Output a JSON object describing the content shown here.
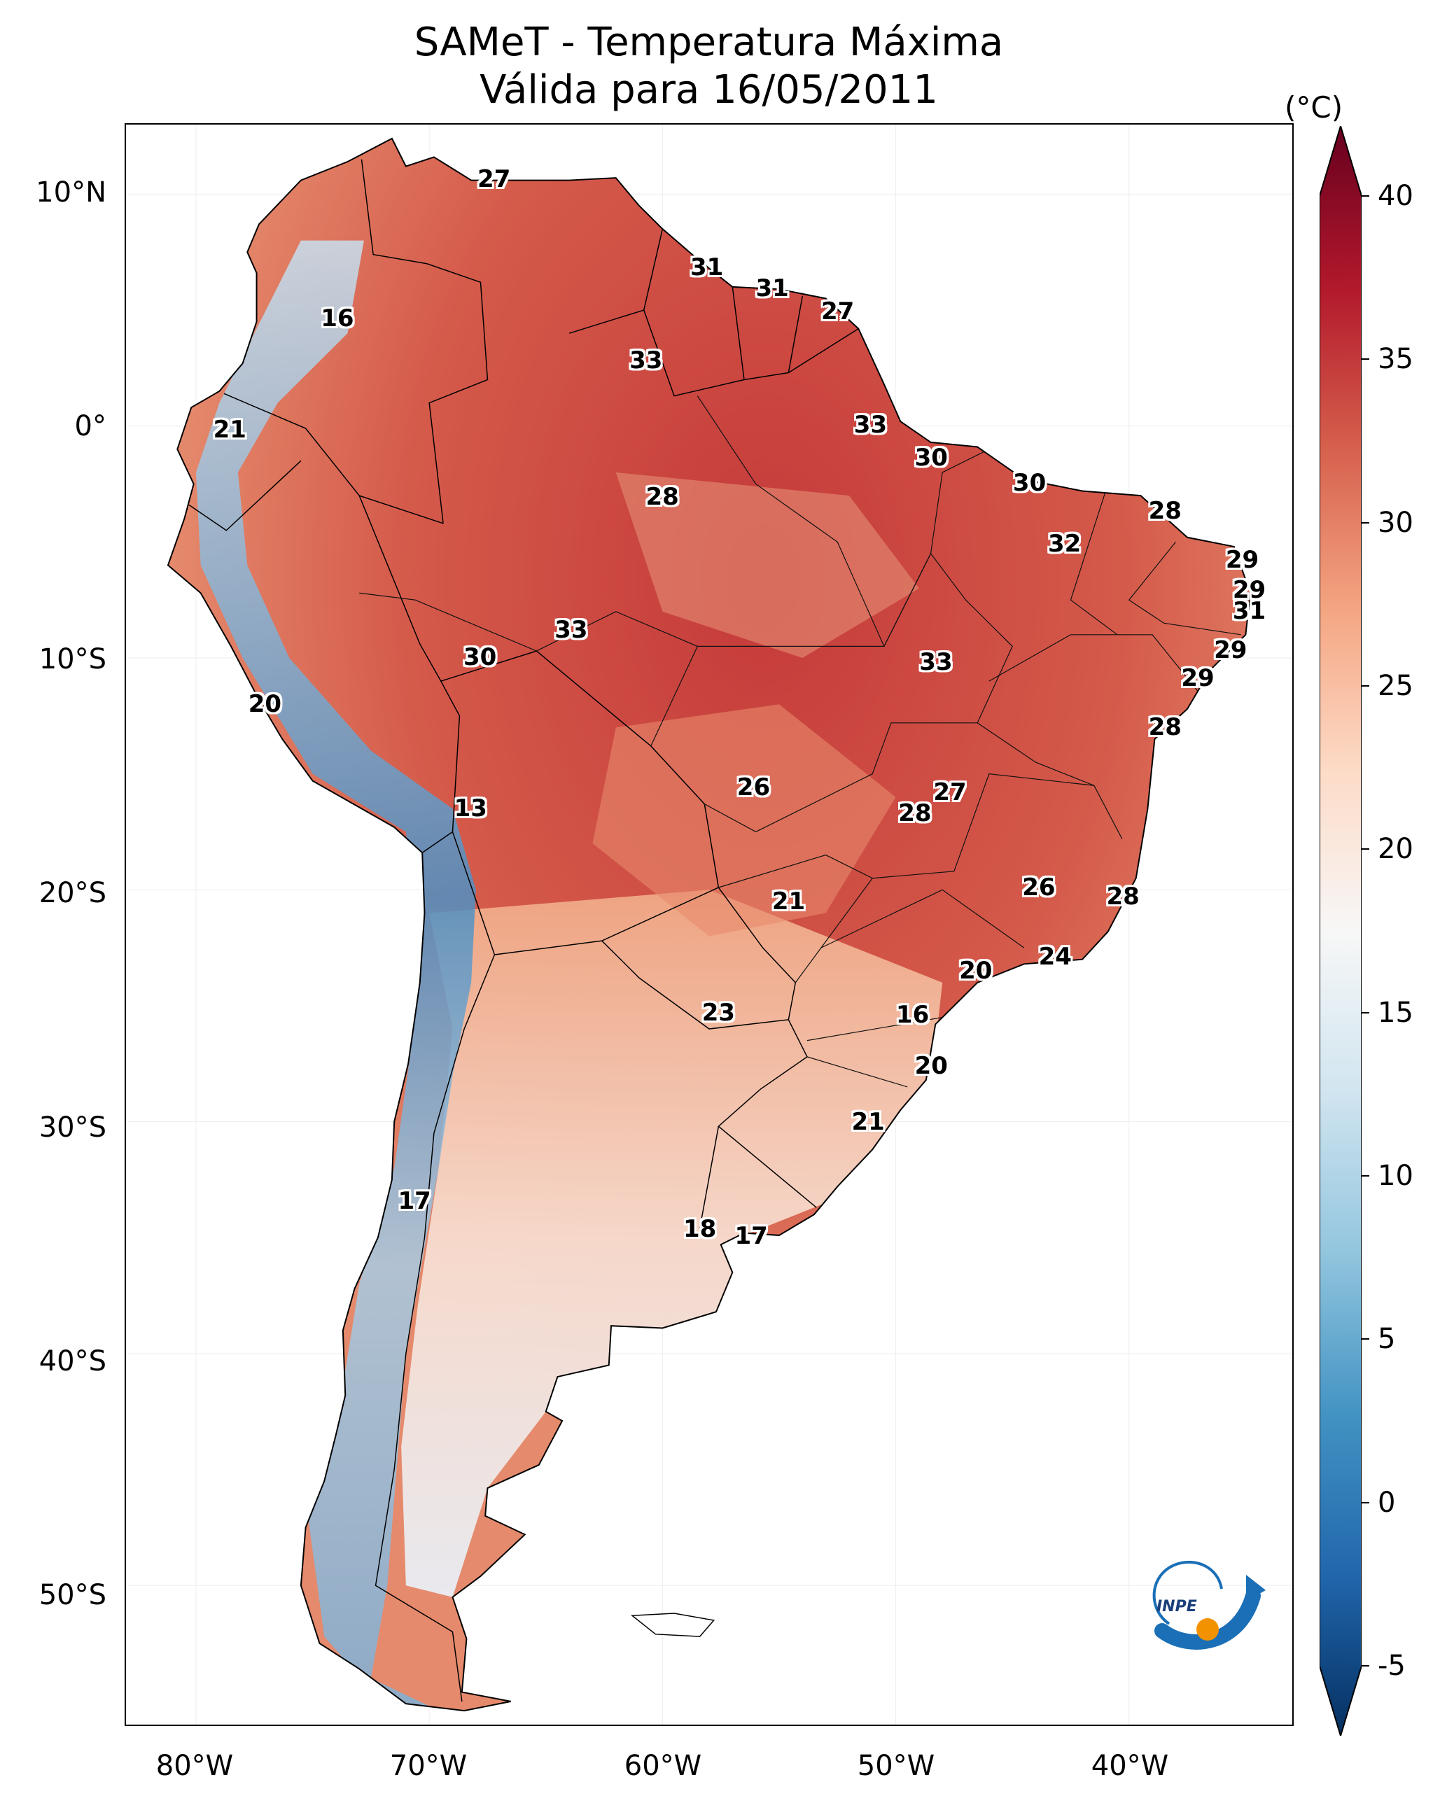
{
  "title": {
    "line1": "SAMeT - Temperatura Máxima",
    "line2": "Válida para 16/05/2011"
  },
  "latitude_labels": [
    "10°N",
    "0°",
    "10°S",
    "20°S",
    "30°S",
    "40°S",
    "50°S"
  ],
  "longitude_labels": [
    "80°W",
    "70°W",
    "60°W",
    "50°W",
    "40°W"
  ],
  "colorbar": {
    "unit": "(°C)",
    "ticks": [
      "40",
      "35",
      "30",
      "25",
      "20",
      "15",
      "10",
      "5",
      "0",
      "-5"
    ],
    "min": -5,
    "max": 40,
    "colormap": "RdBu_r",
    "colors": [
      "#053061",
      "#2166ac",
      "#4393c3",
      "#92c5de",
      "#d1e5f0",
      "#f7f7f7",
      "#fddbc7",
      "#f4a582",
      "#d6604d",
      "#b2182b",
      "#67001f"
    ]
  },
  "map_data": {
    "extent_lon": [
      -83,
      -33
    ],
    "extent_lat": [
      -56,
      13
    ],
    "point_values": [
      {
        "lon": -67.2,
        "lat": 10.6,
        "value": "27"
      },
      {
        "lon": -58.1,
        "lat": 6.8,
        "value": "31"
      },
      {
        "lon": -55.3,
        "lat": 5.9,
        "value": "31"
      },
      {
        "lon": -52.5,
        "lat": 4.9,
        "value": "27"
      },
      {
        "lon": -73.9,
        "lat": 4.6,
        "value": "16"
      },
      {
        "lon": -60.7,
        "lat": 2.8,
        "value": "33"
      },
      {
        "lon": -78.5,
        "lat": -0.2,
        "value": "21"
      },
      {
        "lon": -51.1,
        "lat": 0.0,
        "value": "33"
      },
      {
        "lon": -48.5,
        "lat": -1.4,
        "value": "30"
      },
      {
        "lon": -60.0,
        "lat": -3.1,
        "value": "28"
      },
      {
        "lon": -44.3,
        "lat": -2.5,
        "value": "30"
      },
      {
        "lon": -38.5,
        "lat": -3.7,
        "value": "28"
      },
      {
        "lon": -42.8,
        "lat": -5.1,
        "value": "32"
      },
      {
        "lon": -35.2,
        "lat": -5.8,
        "value": "29"
      },
      {
        "lon": -34.9,
        "lat": -7.1,
        "value": "29"
      },
      {
        "lon": -34.9,
        "lat": -8.0,
        "value": "31"
      },
      {
        "lon": -63.9,
        "lat": -8.8,
        "value": "33"
      },
      {
        "lon": -67.8,
        "lat": -10.0,
        "value": "30"
      },
      {
        "lon": -48.3,
        "lat": -10.2,
        "value": "33"
      },
      {
        "lon": -35.7,
        "lat": -9.7,
        "value": "29"
      },
      {
        "lon": -37.1,
        "lat": -10.9,
        "value": "29"
      },
      {
        "lon": -77.0,
        "lat": -12.0,
        "value": "20"
      },
      {
        "lon": -38.5,
        "lat": -13.0,
        "value": "28"
      },
      {
        "lon": -56.1,
        "lat": -15.6,
        "value": "26"
      },
      {
        "lon": -47.7,
        "lat": -15.8,
        "value": "27"
      },
      {
        "lon": -49.2,
        "lat": -16.7,
        "value": "28"
      },
      {
        "lon": -68.2,
        "lat": -16.5,
        "value": "13"
      },
      {
        "lon": -43.9,
        "lat": -19.9,
        "value": "26"
      },
      {
        "lon": -40.3,
        "lat": -20.3,
        "value": "28"
      },
      {
        "lon": -54.6,
        "lat": -20.5,
        "value": "21"
      },
      {
        "lon": -43.2,
        "lat": -22.9,
        "value": "24"
      },
      {
        "lon": -46.6,
        "lat": -23.5,
        "value": "20"
      },
      {
        "lon": -57.6,
        "lat": -25.3,
        "value": "23"
      },
      {
        "lon": -49.3,
        "lat": -25.4,
        "value": "16"
      },
      {
        "lon": -48.5,
        "lat": -27.6,
        "value": "20"
      },
      {
        "lon": -51.2,
        "lat": -30.0,
        "value": "21"
      },
      {
        "lon": -70.6,
        "lat": -33.4,
        "value": "17"
      },
      {
        "lon": -58.4,
        "lat": -34.6,
        "value": "18"
      },
      {
        "lon": -56.2,
        "lat": -34.9,
        "value": "17"
      }
    ]
  },
  "logo": {
    "text": "INPE"
  }
}
